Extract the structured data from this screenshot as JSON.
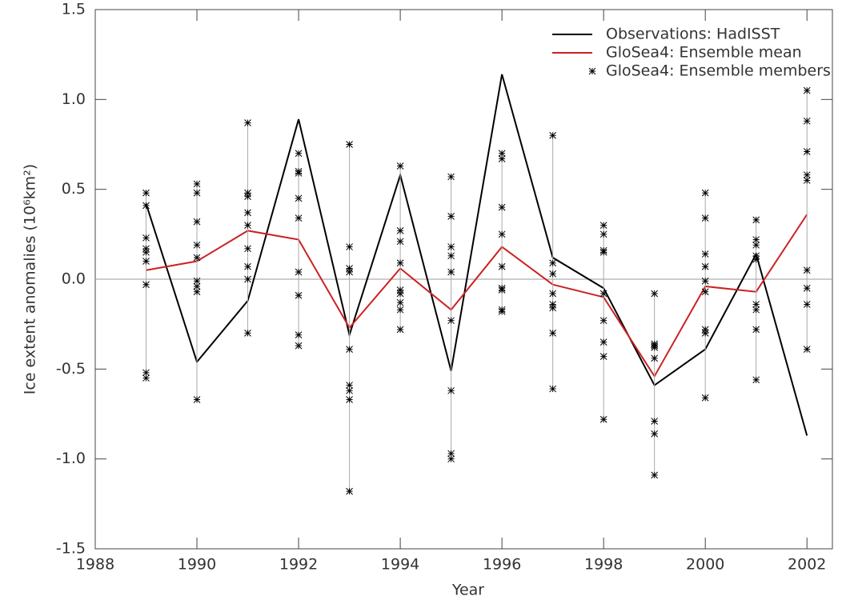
{
  "chart_data": {
    "type": "line",
    "x_label": "Year",
    "y_label": "Ice extent anomalies (10⁶km²)",
    "x": [
      1989,
      1990,
      1991,
      1992,
      1993,
      1994,
      1995,
      1996,
      1997,
      1998,
      1999,
      2000,
      2001,
      2002
    ],
    "series": [
      {
        "name": "Observations: HadISST",
        "color": "#000000",
        "style": "line",
        "values": [
          0.42,
          -0.46,
          -0.12,
          0.89,
          -0.31,
          0.58,
          -0.51,
          1.14,
          0.12,
          -0.05,
          -0.59,
          -0.39,
          0.14,
          -0.87
        ]
      },
      {
        "name": "GloSea4: Ensemble mean",
        "color": "#cc2222",
        "style": "line",
        "values": [
          0.05,
          0.1,
          0.27,
          0.22,
          -0.27,
          0.06,
          -0.17,
          0.18,
          -0.03,
          -0.1,
          -0.54,
          -0.04,
          -0.07,
          0.36
        ]
      },
      {
        "name": "GloSea4: Ensemble members",
        "color": "#000000",
        "style": "markers",
        "values": [
          [
            0.48,
            0.41,
            0.23,
            0.17,
            0.15,
            0.1,
            -0.03,
            -0.52,
            -0.55
          ],
          [
            0.53,
            0.48,
            0.32,
            0.19,
            0.12,
            -0.01,
            -0.04,
            -0.07,
            -0.67
          ],
          [
            0.87,
            0.48,
            0.46,
            0.37,
            0.3,
            0.17,
            0.07,
            0.0,
            -0.3
          ],
          [
            0.7,
            0.6,
            0.59,
            0.45,
            0.34,
            0.04,
            -0.09,
            -0.31,
            -0.37
          ],
          [
            0.75,
            0.18,
            0.06,
            0.04,
            -0.39,
            -0.59,
            -0.62,
            -0.67,
            -1.18
          ],
          [
            0.63,
            0.27,
            0.21,
            0.09,
            -0.06,
            -0.08,
            -0.13,
            -0.17,
            -0.28
          ],
          [
            0.57,
            0.35,
            0.18,
            0.13,
            0.04,
            -0.23,
            -0.62,
            -0.97,
            -1.0
          ],
          [
            0.7,
            0.67,
            0.4,
            0.25,
            0.07,
            -0.05,
            -0.06,
            -0.17,
            -0.18
          ],
          [
            0.8,
            0.09,
            0.03,
            -0.08,
            -0.14,
            -0.16,
            -0.3,
            -0.61
          ],
          [
            0.3,
            0.25,
            0.16,
            0.15,
            -0.08,
            -0.23,
            -0.35,
            -0.43,
            -0.78
          ],
          [
            -0.08,
            -0.36,
            -0.37,
            -0.38,
            -0.44,
            -0.79,
            -0.86,
            -1.09
          ],
          [
            0.48,
            0.34,
            0.14,
            0.07,
            -0.01,
            -0.07,
            -0.28,
            -0.3,
            -0.66
          ],
          [
            0.33,
            0.22,
            0.19,
            0.13,
            0.11,
            -0.14,
            -0.17,
            -0.28,
            -0.56
          ],
          [
            1.05,
            0.88,
            0.71,
            0.58,
            0.55,
            0.05,
            -0.05,
            -0.14,
            -0.39
          ]
        ]
      }
    ],
    "xlim": [
      1988,
      2002.5
    ],
    "xticks": [
      1988,
      1990,
      1992,
      1994,
      1996,
      1998,
      2000,
      2002
    ],
    "ylim": [
      -1.5,
      1.5
    ],
    "yticks": [
      -1.5,
      {
        "value": -1,
        "label": "-1.0"
      },
      -0.5,
      {
        "value": 0,
        "label": "0.0"
      },
      0.5,
      {
        "value": 1,
        "label": "1.0"
      },
      1.5
    ],
    "reference_line": 0,
    "legend": "upper right"
  }
}
